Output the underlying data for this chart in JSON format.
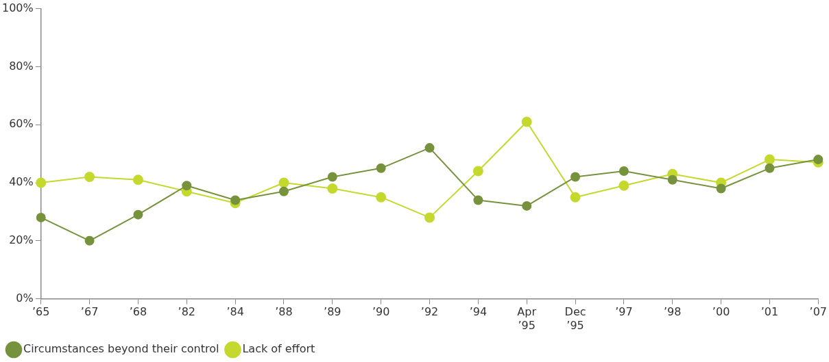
{
  "chart_data": {
    "type": "line",
    "categories": [
      "’65",
      "’67",
      "’68",
      "’82",
      "’84",
      "’88",
      "’89",
      "’90",
      "’92",
      "’94",
      "Apr\n’95",
      "Dec\n’95",
      "’97",
      "’98",
      "’00",
      "’01",
      "’07"
    ],
    "series": [
      {
        "name": "Lack of effort",
        "color": "#c5d82e",
        "values": [
          40,
          42,
          41,
          37,
          33,
          40,
          38,
          35,
          28,
          44,
          61,
          35,
          39,
          43,
          40,
          48,
          47
        ]
      },
      {
        "name": "Circumstances beyond their control",
        "color": "#76923c",
        "values": [
          28,
          20,
          29,
          39,
          34,
          37,
          42,
          45,
          52,
          34,
          32,
          42,
          44,
          41,
          38,
          45,
          48
        ]
      }
    ],
    "ylim": [
      0,
      100
    ],
    "yticks": [
      {
        "value": 0,
        "label": "0%"
      },
      {
        "value": 20,
        "label": "20%"
      },
      {
        "value": 40,
        "label": "40%"
      },
      {
        "value": 60,
        "label": "60%"
      },
      {
        "value": 80,
        "label": "80%"
      },
      {
        "value": 100,
        "label": "100%"
      }
    ],
    "grid": false,
    "legend": "bottom left",
    "marker": "circle",
    "line_style": "solid"
  }
}
